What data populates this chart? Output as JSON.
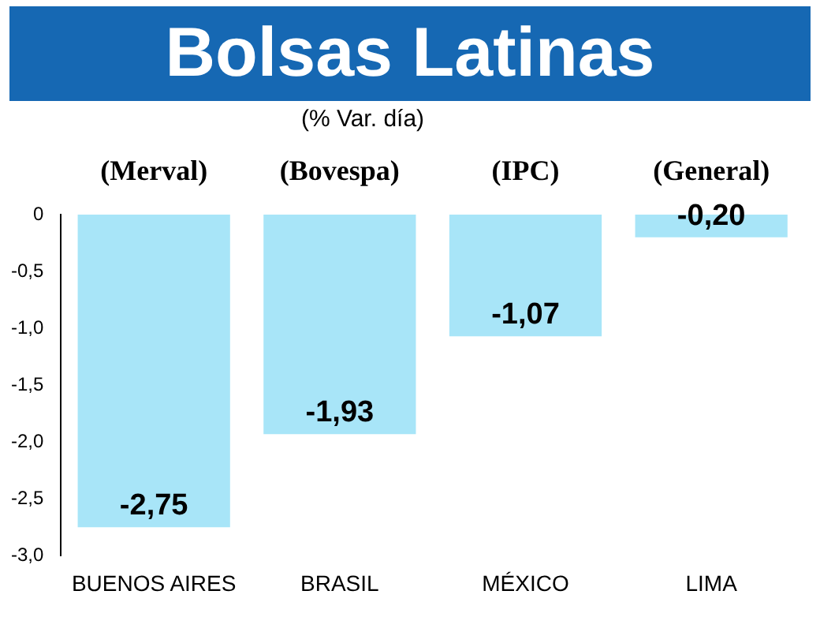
{
  "chart_data": {
    "type": "bar",
    "title": "Bolsas Latinas",
    "subtitle": "(% Var. día)",
    "categories": [
      "BUENOS AIRES",
      "BRASIL",
      "MÉXICO",
      "LIMA"
    ],
    "values": [
      -2.75,
      -1.93,
      -1.07,
      -0.2
    ],
    "value_labels": [
      "-2,75",
      "-1,93",
      "-1,07",
      "-0,20"
    ],
    "color": "#a8e5f8",
    "annotations": [
      "(Merval)",
      "(Bovespa)",
      "(IPC)",
      "(General)"
    ],
    "ylim": [
      -3.0,
      0
    ],
    "yticks": [
      {
        "value": 0,
        "label": "0"
      },
      {
        "value": -0.5,
        "label": "-0,5"
      },
      {
        "value": -1.0,
        "label": "-1,0"
      },
      {
        "value": -1.5,
        "label": "-1,5"
      },
      {
        "value": -2.0,
        "label": "-2,0"
      },
      {
        "value": -2.5,
        "label": "-2,5"
      },
      {
        "value": -3.0,
        "label": "-3,0"
      }
    ],
    "grid": false,
    "legend": false
  }
}
